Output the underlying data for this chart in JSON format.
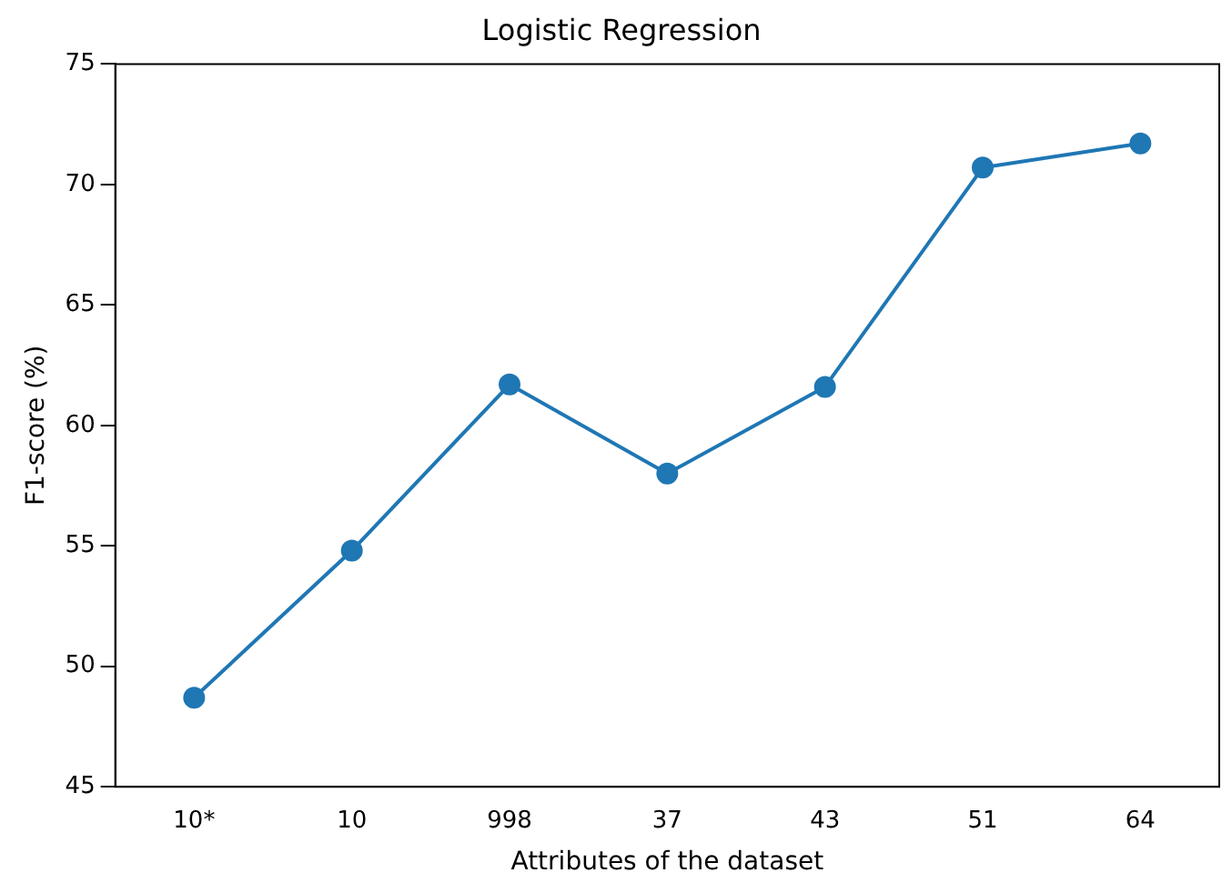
{
  "chart_data": {
    "type": "line",
    "title": "Logistic Regression",
    "xlabel": "Attributes of the dataset",
    "ylabel": "F1-score (%)",
    "categories": [
      "10*",
      "10",
      "998",
      "37",
      "43",
      "51",
      "64"
    ],
    "series": [
      {
        "color": "#1f77b4",
        "values": [
          48.7,
          54.8,
          61.7,
          58.0,
          61.6,
          70.7,
          71.7
        ]
      }
    ],
    "ylim": [
      45,
      75
    ],
    "yticks": [
      45,
      50,
      55,
      60,
      65,
      70,
      75
    ],
    "grid": false,
    "legend": false,
    "marker": "circle",
    "line_style": "solid"
  }
}
